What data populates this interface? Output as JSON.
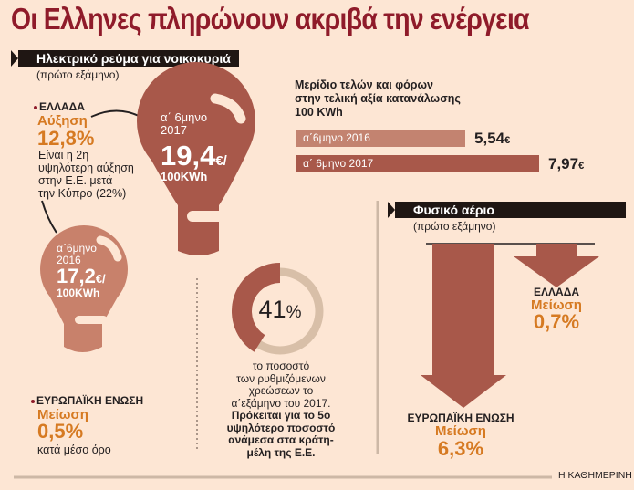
{
  "title": "Οι Ελληνες πληρώνουν ακριβά την ενέργεια",
  "colors": {
    "title": "#8f1b2a",
    "dark_bulb": "#a8584a",
    "light_bulb": "#c8816b",
    "bar_2016": "#c38370",
    "bar_2017": "#a8584a",
    "accent_orange": "#d67a22",
    "ring_bg": "#d8bfa8"
  },
  "electricity": {
    "banner": "Ηλεκτρικό ρεύμα για νοικοκυριά",
    "period": "(πρώτο εξάμηνο)",
    "greece": {
      "country": "ΕΛΛΑΔΑ",
      "change_label": "Αύξηση",
      "change_value": "12,8%",
      "note": [
        "Είναι η 2η",
        "υψηλότερη αύξηση",
        "στην Ε.Ε. μετά",
        "την Κύπρο (22%)"
      ]
    },
    "bulb_2017": {
      "period": "α΄ 6μηνο",
      "year": "2017",
      "price": "19,4",
      "unit_currency": "€/",
      "unit": "100KWh"
    },
    "bulb_2016": {
      "period": "α΄6μηνο",
      "year": "2016",
      "price": "17,2",
      "unit_currency": "€/",
      "unit": "100KWh"
    },
    "eu": {
      "country": "ΕΥΡΩΠΑΪΚΗ ΕΝΩΣΗ",
      "change_label": "Μείωση",
      "change_value": "0,5%",
      "note": "κατά μέσο όρο"
    },
    "ring": {
      "value_number": "41",
      "value_unit": "%",
      "fraction": 0.41,
      "caption_regular": [
        "το ποσοστό",
        "των ρυθμιζόμενων",
        "χρεώσεων το",
        "α΄εξάμηνο του 2017."
      ],
      "caption_bold": [
        "Πρόκειται για το 5ο",
        "υψηλότερο ποσοστό",
        "ανάμεσα στα κράτη-",
        "μέλη της Ε.Ε."
      ]
    }
  },
  "chart_data": {
    "type": "bar",
    "title": "Μερίδιο τελών και φόρων στην τελική αξία κατανάλωσης 100 KWh",
    "title_lines": [
      "Μερίδιο τελών και φόρων",
      "στην τελική αξία κατανάλωσης",
      "100 KWh"
    ],
    "orientation": "horizontal",
    "categories": [
      "α΄6μηνο 2016",
      "α΄ 6μηνο 2017"
    ],
    "values": [
      5.54,
      7.97
    ],
    "value_labels": [
      "5,54",
      "7,97"
    ],
    "unit": "€",
    "xlim": [
      0,
      8.5
    ]
  },
  "gas": {
    "banner": "Φυσικό αέριο",
    "period": "(πρώτο εξάμηνο)",
    "eu": {
      "country": "ΕΥΡΩΠΑΪΚΗ ΕΝΩΣΗ",
      "change_label": "Μείωση",
      "change_value": "6,3%",
      "decrease": 6.3
    },
    "greece": {
      "country": "ΕΛΛΑΔΑ",
      "change_label": "Μείωση",
      "change_value": "0,7%",
      "decrease": 0.7
    }
  },
  "source": "Η ΚΑΘΗΜΕΡΙΝΗ"
}
